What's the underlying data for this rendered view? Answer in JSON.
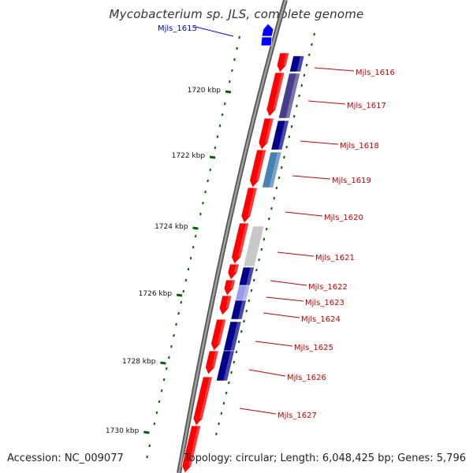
{
  "title": "Mycobacterium sp. JLS, complete genome",
  "footer": {
    "accession": "Accession: NC_009077",
    "summary": "Topology: circular; Length: 6,048,425 bp; Genes: 5,796"
  },
  "colors": {
    "forward_gene": "#ff0000",
    "reverse_gene": "#0000ff",
    "backbone": "#808080",
    "tick": "#006400",
    "label_forward": "#cc0000",
    "label_reverse": "#0000cc",
    "blast_dark": "#00008b",
    "blast_mid": "#483d8b",
    "blast_light": "#9999ee",
    "blast_blue": "#4682b4",
    "blast_grey": "#c8c8c8"
  },
  "scale_labels": [
    "1720 kbp",
    "1722 kbp",
    "1724 kbp",
    "1726 kbp",
    "1728 kbp",
    "1730 kbp"
  ],
  "genes": [
    {
      "name": "Mjls_1615",
      "strand": "reverse"
    },
    {
      "name": "Mjls_1616",
      "strand": "forward"
    },
    {
      "name": "Mjls_1617",
      "strand": "forward"
    },
    {
      "name": "Mjls_1618",
      "strand": "forward"
    },
    {
      "name": "Mjls_1619",
      "strand": "forward"
    },
    {
      "name": "Mjls_1620",
      "strand": "forward"
    },
    {
      "name": "Mjls_1621",
      "strand": "forward"
    },
    {
      "name": "Mjls_1622",
      "strand": "forward"
    },
    {
      "name": "Mjls_1623",
      "strand": "forward"
    },
    {
      "name": "Mjls_1624",
      "strand": "forward"
    },
    {
      "name": "Mjls_1625",
      "strand": "forward"
    },
    {
      "name": "Mjls_1626",
      "strand": "forward"
    },
    {
      "name": "Mjls_1627",
      "strand": "forward"
    }
  ]
}
